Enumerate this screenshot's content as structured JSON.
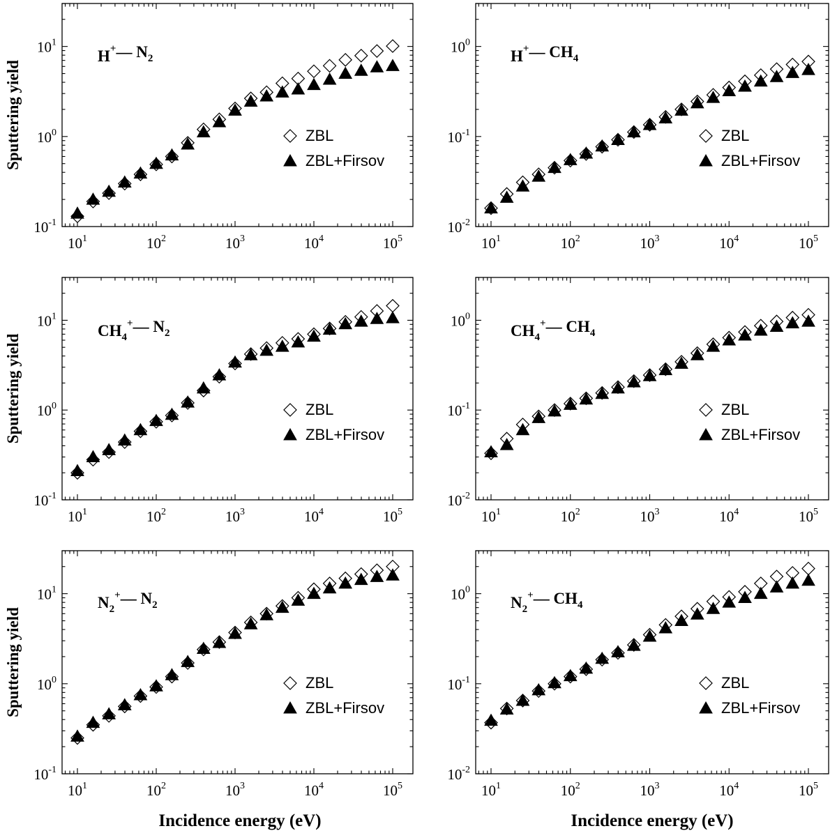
{
  "figure": {
    "x_axis_title": "Incidence energy (eV)",
    "y_axis_title": "Sputtering yield"
  },
  "legend": {
    "zbl": "ZBL",
    "zbl_firsov": "ZBL+Firsov"
  },
  "panel_labels": [
    {
      "ion": "H",
      "ion_sub": "",
      "charge": "+",
      "sep": "— ",
      "target": "N",
      "target_sub": "2"
    },
    {
      "ion": "H",
      "ion_sub": "",
      "charge": "+",
      "sep": "— ",
      "target": "CH",
      "target_sub": "4"
    },
    {
      "ion": "CH",
      "ion_sub": "4",
      "charge": "+",
      "sep": "— ",
      "target": "N",
      "target_sub": "2"
    },
    {
      "ion": "CH",
      "ion_sub": "4",
      "charge": "+",
      "sep": "— ",
      "target": "CH",
      "target_sub": "4"
    },
    {
      "ion": "N",
      "ion_sub": "2",
      "charge": "+",
      "sep": "— ",
      "target": "N",
      "target_sub": "2"
    },
    {
      "ion": "N",
      "ion_sub": "2",
      "charge": "+",
      "sep": "— ",
      "target": "CH",
      "target_sub": "4"
    }
  ],
  "chart_data": [
    {
      "type": "scatter",
      "title": "H+— N2",
      "xlabel": "Incidence energy (eV)",
      "ylabel": "Sputtering yield",
      "xscale": "log",
      "yscale": "log",
      "xlim": [
        10,
        100000
      ],
      "ylim": [
        0.1,
        30
      ],
      "xticks": [
        "10^1",
        "10^2",
        "10^3",
        "10^4",
        "10^5"
      ],
      "yticks": [
        "10^-1",
        "10^0",
        "10^1"
      ],
      "x": [
        10,
        15.8,
        25.1,
        39.8,
        63.1,
        100,
        158,
        251,
        398,
        631,
        1000,
        1585,
        2512,
        3981,
        6310,
        10000,
        15849,
        25119,
        39811,
        63096,
        100000
      ],
      "series": [
        {
          "name": "ZBL",
          "marker": "open-diamond",
          "values": [
            0.13,
            0.19,
            0.235,
            0.3,
            0.38,
            0.49,
            0.6,
            0.85,
            1.2,
            1.55,
            2.05,
            2.65,
            3.1,
            3.9,
            4.4,
            5.3,
            6.1,
            7.1,
            7.9,
            8.9,
            10.1
          ]
        },
        {
          "name": "ZBL+Firsov",
          "marker": "filled-triangle",
          "values": [
            0.14,
            0.2,
            0.245,
            0.31,
            0.39,
            0.5,
            0.62,
            0.82,
            1.12,
            1.45,
            1.95,
            2.45,
            2.8,
            3.1,
            3.35,
            3.75,
            4.3,
            5.0,
            5.4,
            5.9,
            6.1
          ]
        }
      ],
      "legend_position": "center-right"
    },
    {
      "type": "scatter",
      "title": "H+— CH4",
      "xlabel": "Incidence energy (eV)",
      "ylabel": "Sputtering yield",
      "xscale": "log",
      "yscale": "log",
      "xlim": [
        10,
        100000
      ],
      "ylim": [
        0.01,
        3
      ],
      "xticks": [
        "10^1",
        "10^2",
        "10^3",
        "10^4",
        "10^5"
      ],
      "yticks": [
        "10^-2",
        "10^-1",
        "10^0"
      ],
      "x": [
        10,
        15.8,
        25.1,
        39.8,
        63.1,
        100,
        158,
        251,
        398,
        631,
        1000,
        1585,
        2512,
        3981,
        6310,
        10000,
        15849,
        25119,
        39811,
        63096,
        100000
      ],
      "series": [
        {
          "name": "ZBL",
          "marker": "open-diamond",
          "values": [
            0.016,
            0.023,
            0.031,
            0.038,
            0.045,
            0.054,
            0.064,
            0.077,
            0.092,
            0.112,
            0.135,
            0.165,
            0.2,
            0.245,
            0.29,
            0.35,
            0.41,
            0.48,
            0.56,
            0.63,
            0.68
          ]
        },
        {
          "name": "ZBL+Firsov",
          "marker": "filled-triangle",
          "values": [
            0.016,
            0.021,
            0.028,
            0.036,
            0.045,
            0.055,
            0.065,
            0.078,
            0.092,
            0.112,
            0.135,
            0.16,
            0.195,
            0.235,
            0.27,
            0.32,
            0.36,
            0.41,
            0.46,
            0.51,
            0.55
          ]
        }
      ],
      "legend_position": "center-right"
    },
    {
      "type": "scatter",
      "title": "CH4+— N2",
      "xlabel": "Incidence energy (eV)",
      "ylabel": "Sputtering yield",
      "xscale": "log",
      "yscale": "log",
      "xlim": [
        10,
        100000
      ],
      "ylim": [
        0.1,
        30
      ],
      "xticks": [
        "10^1",
        "10^2",
        "10^3",
        "10^4",
        "10^5"
      ],
      "yticks": [
        "10^-1",
        "10^0",
        "10^1"
      ],
      "x": [
        10,
        15.8,
        25.1,
        39.8,
        63.1,
        100,
        158,
        251,
        398,
        631,
        1000,
        1585,
        2512,
        3981,
        6310,
        10000,
        15849,
        25119,
        39811,
        63096,
        100000
      ],
      "series": [
        {
          "name": "ZBL",
          "marker": "open-diamond",
          "values": [
            0.2,
            0.28,
            0.34,
            0.44,
            0.58,
            0.74,
            0.87,
            1.2,
            1.65,
            2.35,
            3.3,
            4.2,
            4.9,
            5.6,
            6.2,
            7.0,
            8.1,
            9.6,
            10.9,
            12.7,
            14.5
          ]
        },
        {
          "name": "ZBL+Firsov",
          "marker": "filled-triangle",
          "values": [
            0.21,
            0.3,
            0.36,
            0.46,
            0.6,
            0.76,
            0.89,
            1.22,
            1.75,
            2.45,
            3.4,
            4.1,
            4.6,
            5.1,
            5.7,
            6.6,
            7.9,
            9.1,
            9.7,
            10.4,
            10.6
          ]
        }
      ],
      "legend_position": "center-right"
    },
    {
      "type": "scatter",
      "title": "CH4+— CH4",
      "xlabel": "Incidence energy (eV)",
      "ylabel": "Sputtering yield",
      "xscale": "log",
      "yscale": "log",
      "xlim": [
        10,
        100000
      ],
      "ylim": [
        0.01,
        3
      ],
      "xticks": [
        "10^1",
        "10^2",
        "10^3",
        "10^4",
        "10^5"
      ],
      "yticks": [
        "10^-2",
        "10^-1",
        "10^0"
      ],
      "x": [
        10,
        15.8,
        25.1,
        39.8,
        63.1,
        100,
        158,
        251,
        398,
        631,
        1000,
        1585,
        2512,
        3981,
        6310,
        10000,
        15849,
        25119,
        39811,
        63096,
        100000
      ],
      "series": [
        {
          "name": "ZBL",
          "marker": "open-diamond",
          "values": [
            0.033,
            0.048,
            0.069,
            0.085,
            0.1,
            0.118,
            0.135,
            0.155,
            0.18,
            0.21,
            0.245,
            0.285,
            0.345,
            0.43,
            0.54,
            0.64,
            0.74,
            0.87,
            0.97,
            1.07,
            1.15
          ]
        },
        {
          "name": "ZBL+Firsov",
          "marker": "filled-triangle",
          "values": [
            0.034,
            0.041,
            0.06,
            0.082,
            0.097,
            0.115,
            0.132,
            0.152,
            0.175,
            0.205,
            0.24,
            0.28,
            0.33,
            0.41,
            0.51,
            0.6,
            0.68,
            0.77,
            0.85,
            0.93,
            0.97
          ]
        }
      ],
      "legend_position": "center-right"
    },
    {
      "type": "scatter",
      "title": "N2+— N2",
      "xlabel": "Incidence energy (eV)",
      "ylabel": "Sputtering yield",
      "xscale": "log",
      "yscale": "log",
      "xlim": [
        10,
        100000
      ],
      "ylim": [
        0.1,
        30
      ],
      "xticks": [
        "10^1",
        "10^2",
        "10^3",
        "10^4",
        "10^5"
      ],
      "yticks": [
        "10^-1",
        "10^0",
        "10^1"
      ],
      "x": [
        10,
        15.8,
        25.1,
        39.8,
        63.1,
        100,
        158,
        251,
        398,
        631,
        1000,
        1585,
        2512,
        3981,
        6310,
        10000,
        15849,
        25119,
        39811,
        63096,
        100000
      ],
      "series": [
        {
          "name": "ZBL",
          "marker": "open-diamond",
          "values": [
            0.25,
            0.35,
            0.44,
            0.56,
            0.73,
            0.92,
            1.2,
            1.7,
            2.4,
            2.9,
            3.7,
            4.8,
            6.0,
            7.3,
            9.0,
            11.2,
            13.0,
            14.8,
            16.5,
            18.2,
            20.0
          ]
        },
        {
          "name": "ZBL+Firsov",
          "marker": "filled-triangle",
          "values": [
            0.26,
            0.37,
            0.46,
            0.58,
            0.75,
            0.94,
            1.25,
            1.75,
            2.45,
            2.85,
            3.6,
            4.6,
            5.8,
            7.0,
            8.4,
            10.0,
            11.5,
            13.0,
            14.3,
            15.4,
            16.0
          ]
        }
      ],
      "legend_position": "center-right"
    },
    {
      "type": "scatter",
      "title": "N2+— CH4",
      "xlabel": "Incidence energy (eV)",
      "ylabel": "Sputtering yield",
      "xscale": "log",
      "yscale": "log",
      "xlim": [
        10,
        100000
      ],
      "ylim": [
        0.01,
        3
      ],
      "xticks": [
        "10^1",
        "10^2",
        "10^3",
        "10^4",
        "10^5"
      ],
      "yticks": [
        "10^-2",
        "10^-1",
        "10^0"
      ],
      "x": [
        10,
        15.8,
        25.1,
        39.8,
        63.1,
        100,
        158,
        251,
        398,
        631,
        1000,
        1585,
        2512,
        3981,
        6310,
        10000,
        15849,
        25119,
        39811,
        63096,
        100000
      ],
      "series": [
        {
          "name": "ZBL",
          "marker": "open-diamond",
          "values": [
            0.037,
            0.053,
            0.065,
            0.083,
            0.1,
            0.12,
            0.145,
            0.185,
            0.22,
            0.27,
            0.35,
            0.45,
            0.56,
            0.68,
            0.82,
            0.92,
            1.05,
            1.3,
            1.55,
            1.7,
            1.9
          ]
        },
        {
          "name": "ZBL+Firsov",
          "marker": "filled-triangle",
          "values": [
            0.039,
            0.052,
            0.065,
            0.085,
            0.102,
            0.122,
            0.148,
            0.19,
            0.225,
            0.265,
            0.335,
            0.415,
            0.5,
            0.59,
            0.68,
            0.8,
            0.9,
            1.0,
            1.18,
            1.3,
            1.4
          ]
        }
      ],
      "legend_position": "center-right"
    }
  ]
}
